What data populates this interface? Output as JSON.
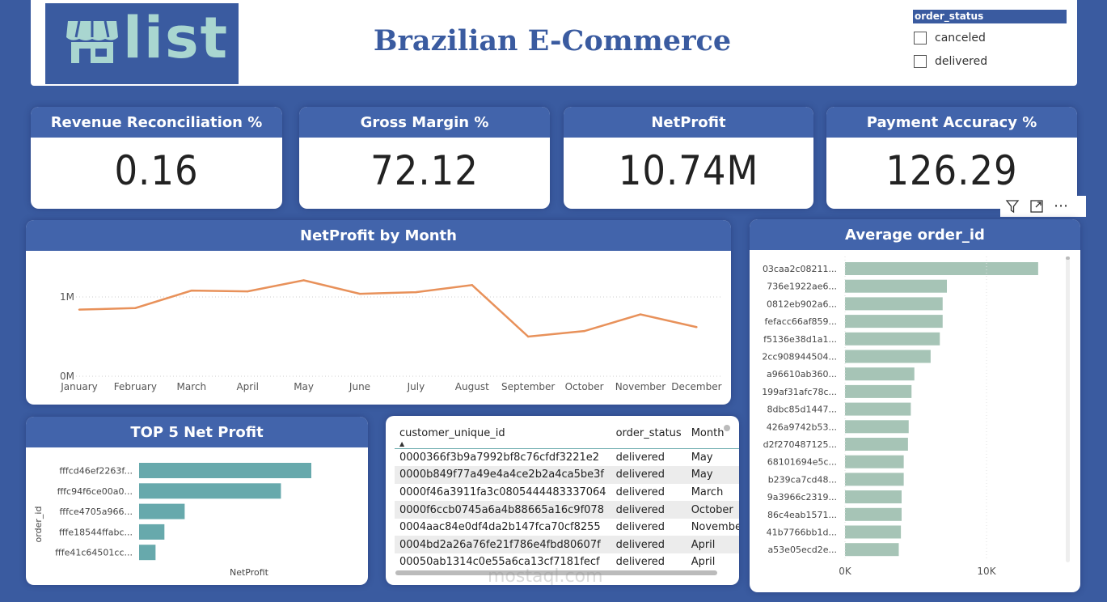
{
  "header": {
    "logo_text": "list",
    "title": "Brazilian E-Commerce"
  },
  "slicer": {
    "title": "order_status",
    "options": [
      "canceled",
      "delivered"
    ]
  },
  "kpis": [
    {
      "label": "Revenue Reconciliation %",
      "value": "0.16"
    },
    {
      "label": "Gross Margin %",
      "value": "72.12"
    },
    {
      "label": "NetProfit",
      "value": "10.74M"
    },
    {
      "label": "Payment Accuracy %",
      "value": "126.29"
    }
  ],
  "visual_toolbar": {
    "filter_icon": "filter-icon",
    "focus_icon": "focus-mode-icon",
    "more": "⋯"
  },
  "colors": {
    "bg": "#3a5ba0",
    "header": "#4264ab",
    "line": "#e8915a",
    "bar_green": "#a6c4b6",
    "bar_teal": "#67a9ac"
  },
  "line_chart": {
    "title": "NetProfit by Month",
    "ytick_labels": [
      "0M",
      "1M"
    ]
  },
  "avg_chart": {
    "title": "Average order_id",
    "xtick_labels": [
      "0K",
      "10K"
    ]
  },
  "top5_chart": {
    "title": "TOP 5 Net Profit",
    "ylabel": "order_id",
    "xlabel": "NetProfit"
  },
  "table": {
    "columns": [
      "customer_unique_id",
      "order_status",
      "Month"
    ],
    "rows": [
      [
        "0000366f3b9a7992bf8c76cfdf3221e2",
        "delivered",
        "May"
      ],
      [
        "0000b849f77a49e4a4ce2b2a4ca5be3f",
        "delivered",
        "May"
      ],
      [
        "0000f46a3911fa3c0805444483337064",
        "delivered",
        "March"
      ],
      [
        "0000f6ccb0745a6a4b88665a16c9f078",
        "delivered",
        "October"
      ],
      [
        "0004aac84e0df4da2b147fca70cf8255",
        "delivered",
        "November"
      ],
      [
        "0004bd2a26a76fe21f786e4fbd80607f",
        "delivered",
        "April"
      ],
      [
        "00050ab1314c0e55a6ca13cf7181fecf",
        "delivered",
        "April"
      ]
    ]
  },
  "watermark": "mostaql.com",
  "chart_data": [
    {
      "type": "line",
      "title": "NetProfit by Month",
      "x": [
        "January",
        "February",
        "March",
        "April",
        "May",
        "June",
        "July",
        "August",
        "September",
        "October",
        "November",
        "December"
      ],
      "series": [
        {
          "values": [
            0.84,
            0.86,
            1.08,
            1.07,
            1.21,
            1.04,
            1.06,
            1.15,
            0.5,
            0.57,
            0.78,
            0.62
          ]
        }
      ],
      "yunit": "M",
      "ylim": [
        0,
        1.4
      ],
      "grid": true
    },
    {
      "type": "bar",
      "orientation": "horizontal",
      "title": "Average order_id",
      "categories": [
        "03caa2c08211...",
        "736e1922ae6...",
        "0812eb902a6...",
        "fefacc66af859...",
        "f5136e38d1a1...",
        "2cc908944504...",
        "a96610ab360...",
        "199af31afc78c...",
        "8dbc85d1447...",
        "426a9742b53...",
        "d2f270487125...",
        "68101694e5c...",
        "b239ca7cd48...",
        "9a3966c2319...",
        "86c4eab1571...",
        "41b7766bb1d...",
        "a53e05ecd2e..."
      ],
      "values": [
        13650,
        7200,
        6900,
        6900,
        6700,
        6050,
        4900,
        4700,
        4650,
        4500,
        4450,
        4150,
        4150,
        4000,
        4000,
        3950,
        3800
      ],
      "xlim": [
        0,
        15000
      ]
    },
    {
      "type": "bar",
      "orientation": "horizontal",
      "title": "TOP 5 Net Profit",
      "categories": [
        "fffcd46ef2263f...",
        "fffc94f6ce00a0...",
        "fffce4705a966...",
        "fffe18544ffabc...",
        "fffe41c64501cc..."
      ],
      "values": [
        13600,
        11200,
        3600,
        2000,
        1300
      ],
      "xlim": [
        0,
        14000
      ]
    }
  ]
}
